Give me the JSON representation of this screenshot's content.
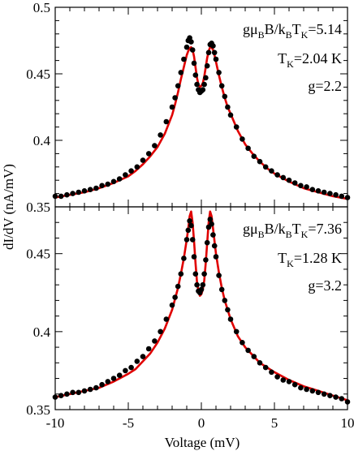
{
  "figure": {
    "xlabel": "Voltage (mV)",
    "ylabel": "dI/dV  (nA/mV)",
    "xticks": [
      "-10",
      "-5",
      "0",
      "5",
      "10"
    ]
  },
  "chart_data": [
    {
      "type": "scatter",
      "panel": "top",
      "xlim": [
        -10,
        10
      ],
      "ylim": [
        0.35,
        0.5
      ],
      "yticks": [
        "0.35",
        "0.4",
        "0.45",
        "0.5"
      ],
      "grid": false,
      "annotations": [
        {
          "main": "gμ",
          "sub1": "B",
          "mid": "B/k",
          "sub2": "B",
          "mid2": "T",
          "sub3": "K",
          "tail": "=5.14"
        },
        {
          "main": "T",
          "sub1": "K",
          "tail": "=2.04 K"
        },
        {
          "main": "g=2.2"
        }
      ],
      "series": [
        {
          "kind": "points",
          "color": "#000000",
          "x": [
            -10,
            -9.6,
            -9.2,
            -8.8,
            -8.4,
            -8,
            -7.6,
            -7.2,
            -6.8,
            -6.4,
            -6,
            -5.6,
            -5.2,
            -4.8,
            -4.4,
            -4,
            -3.6,
            -3.2,
            -2.8,
            -2.4,
            -2,
            -1.8,
            -1.6,
            -1.4,
            -1.2,
            -1.0,
            -0.9,
            -0.8,
            -0.7,
            -0.6,
            -0.5,
            -0.4,
            -0.3,
            -0.2,
            -0.1,
            0,
            0.1,
            0.2,
            0.3,
            0.4,
            0.5,
            0.6,
            0.7,
            0.8,
            0.9,
            1.0,
            1.2,
            1.4,
            1.6,
            1.8,
            2,
            2.4,
            2.8,
            3.2,
            3.6,
            4,
            4.4,
            4.8,
            5.2,
            5.6,
            6,
            6.4,
            6.8,
            7.2,
            7.6,
            8,
            8.4,
            8.8,
            9.2,
            9.6,
            10
          ],
          "y": [
            0.358,
            0.358,
            0.359,
            0.36,
            0.361,
            0.362,
            0.363,
            0.364,
            0.366,
            0.367,
            0.369,
            0.371,
            0.374,
            0.377,
            0.38,
            0.385,
            0.39,
            0.396,
            0.404,
            0.414,
            0.425,
            0.432,
            0.441,
            0.451,
            0.461,
            0.47,
            0.475,
            0.477,
            0.474,
            0.468,
            0.458,
            0.449,
            0.442,
            0.438,
            0.436,
            0.437,
            0.438,
            0.442,
            0.447,
            0.456,
            0.466,
            0.472,
            0.473,
            0.471,
            0.466,
            0.461,
            0.451,
            0.441,
            0.433,
            0.425,
            0.419,
            0.41,
            0.401,
            0.394,
            0.388,
            0.384,
            0.38,
            0.377,
            0.374,
            0.372,
            0.37,
            0.368,
            0.366,
            0.365,
            0.363,
            0.362,
            0.361,
            0.36,
            0.359,
            0.358,
            0.357
          ]
        },
        {
          "kind": "line",
          "color": "#e00000",
          "x": [
            -10,
            -9,
            -8,
            -7,
            -6,
            -5,
            -4.5,
            -4,
            -3.5,
            -3,
            -2.5,
            -2,
            -1.8,
            -1.6,
            -1.4,
            -1.2,
            -1.0,
            -0.9,
            -0.8,
            -0.7,
            -0.6,
            -0.5,
            -0.4,
            -0.3,
            -0.2,
            -0.1,
            0,
            0.1,
            0.2,
            0.3,
            0.4,
            0.5,
            0.6,
            0.7,
            0.8,
            0.9,
            1.0,
            1.2,
            1.4,
            1.6,
            1.8,
            2,
            2.5,
            3,
            3.5,
            4,
            4.5,
            5,
            6,
            7,
            8,
            9,
            10
          ],
          "y": [
            0.357,
            0.359,
            0.361,
            0.364,
            0.368,
            0.373,
            0.377,
            0.382,
            0.388,
            0.395,
            0.405,
            0.419,
            0.427,
            0.436,
            0.446,
            0.455,
            0.464,
            0.467,
            0.469,
            0.47,
            0.468,
            0.463,
            0.455,
            0.447,
            0.442,
            0.44,
            0.441,
            0.443,
            0.448,
            0.455,
            0.462,
            0.467,
            0.47,
            0.47,
            0.468,
            0.464,
            0.459,
            0.449,
            0.44,
            0.432,
            0.425,
            0.42,
            0.407,
            0.397,
            0.39,
            0.384,
            0.379,
            0.375,
            0.369,
            0.364,
            0.361,
            0.358,
            0.356
          ]
        }
      ]
    },
    {
      "type": "scatter",
      "panel": "bottom",
      "xlim": [
        -10,
        10
      ],
      "ylim": [
        0.35,
        0.48
      ],
      "yticks": [
        "0.35",
        "0.4",
        "0.45"
      ],
      "grid": false,
      "annotations": [
        {
          "main": "gμ",
          "sub1": "B",
          "mid": "B/k",
          "sub2": "B",
          "mid2": "T",
          "sub3": "K",
          "tail": "=7.36"
        },
        {
          "main": "T",
          "sub1": "K",
          "tail": "=1.28 K"
        },
        {
          "main": "g=3.2"
        }
      ],
      "series": [
        {
          "kind": "points",
          "color": "#000000",
          "x": [
            -10,
            -9.6,
            -9.2,
            -8.8,
            -8.4,
            -8,
            -7.6,
            -7.2,
            -6.8,
            -6.4,
            -6,
            -5.6,
            -5.2,
            -4.8,
            -4.4,
            -4,
            -3.6,
            -3.2,
            -2.8,
            -2.4,
            -2,
            -1.8,
            -1.6,
            -1.4,
            -1.2,
            -1.0,
            -0.9,
            -0.8,
            -0.7,
            -0.6,
            -0.5,
            -0.4,
            -0.3,
            -0.2,
            -0.1,
            0,
            0.1,
            0.2,
            0.3,
            0.4,
            0.5,
            0.6,
            0.7,
            0.8,
            0.9,
            1.0,
            1.2,
            1.4,
            1.6,
            1.8,
            2,
            2.4,
            2.8,
            3.2,
            3.6,
            4,
            4.4,
            4.8,
            5.2,
            5.6,
            6,
            6.4,
            6.8,
            7.2,
            7.6,
            8,
            8.4,
            8.8,
            9.2,
            9.6,
            10
          ],
          "y": [
            0.358,
            0.359,
            0.36,
            0.361,
            0.361,
            0.362,
            0.363,
            0.364,
            0.366,
            0.368,
            0.37,
            0.372,
            0.375,
            0.377,
            0.381,
            0.384,
            0.389,
            0.394,
            0.4,
            0.408,
            0.417,
            0.422,
            0.429,
            0.437,
            0.447,
            0.459,
            0.465,
            0.471,
            0.468,
            0.459,
            0.448,
            0.437,
            0.43,
            0.426,
            0.425,
            0.427,
            0.43,
            0.437,
            0.446,
            0.457,
            0.467,
            0.472,
            0.469,
            0.462,
            0.455,
            0.448,
            0.436,
            0.427,
            0.42,
            0.414,
            0.408,
            0.4,
            0.393,
            0.388,
            0.384,
            0.38,
            0.377,
            0.374,
            0.371,
            0.369,
            0.368,
            0.366,
            0.364,
            0.363,
            0.362,
            0.361,
            0.36,
            0.359,
            0.358,
            0.357,
            0.355
          ]
        },
        {
          "kind": "line",
          "color": "#e00000",
          "x": [
            -10,
            -9,
            -8,
            -7,
            -6,
            -5,
            -4.5,
            -4,
            -3.5,
            -3,
            -2.5,
            -2,
            -1.8,
            -1.6,
            -1.4,
            -1.2,
            -1.0,
            -0.9,
            -0.8,
            -0.7,
            -0.6,
            -0.5,
            -0.4,
            -0.3,
            -0.2,
            -0.1,
            0,
            0.1,
            0.2,
            0.3,
            0.4,
            0.5,
            0.6,
            0.7,
            0.8,
            0.9,
            1.0,
            1.2,
            1.4,
            1.6,
            1.8,
            2,
            2.5,
            3,
            3.5,
            4,
            4.5,
            5,
            6,
            7,
            8,
            9,
            10
          ],
          "y": [
            0.358,
            0.36,
            0.362,
            0.364,
            0.368,
            0.373,
            0.376,
            0.381,
            0.386,
            0.393,
            0.402,
            0.414,
            0.421,
            0.428,
            0.437,
            0.447,
            0.459,
            0.466,
            0.474,
            0.477,
            0.47,
            0.458,
            0.444,
            0.432,
            0.426,
            0.423,
            0.424,
            0.427,
            0.433,
            0.444,
            0.457,
            0.47,
            0.477,
            0.474,
            0.466,
            0.458,
            0.45,
            0.438,
            0.428,
            0.42,
            0.414,
            0.408,
            0.397,
            0.39,
            0.385,
            0.38,
            0.377,
            0.374,
            0.369,
            0.365,
            0.362,
            0.359,
            0.356
          ]
        }
      ]
    }
  ]
}
